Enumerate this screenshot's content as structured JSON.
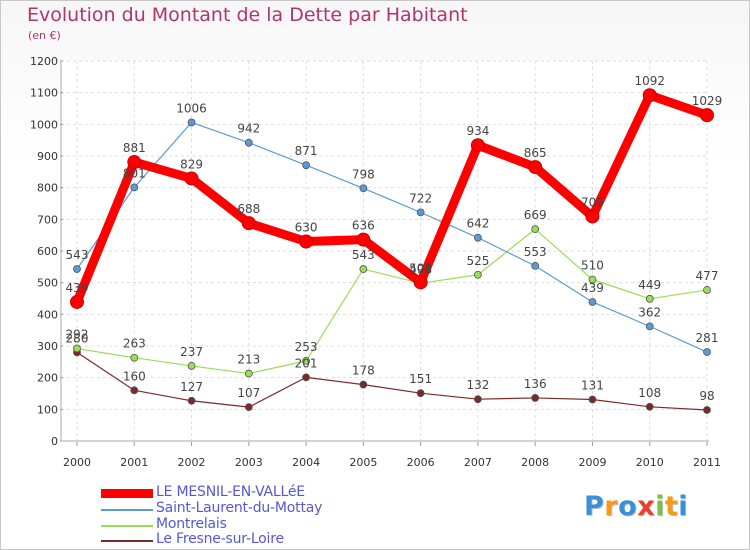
{
  "title": "Evolution du Montant de la Dette par Habitant",
  "subtitle": "(en €)",
  "logo": {
    "text": "Proxiti",
    "colors": [
      "#3a8fd8",
      "#f59a1b",
      "#3a8fd8",
      "#e8402c",
      "#7cc242",
      "#f59a1b",
      "#3a8fd8"
    ]
  },
  "chart_data": {
    "type": "line",
    "title": "Evolution du Montant de la Dette par Habitant",
    "subtitle": "(en €)",
    "xlabel": "",
    "ylabel": "",
    "x": [
      "2000",
      "2001",
      "2002",
      "2003",
      "2004",
      "2005",
      "2006",
      "2007",
      "2008",
      "2009",
      "2010",
      "2011"
    ],
    "yticks": [
      "0",
      "100",
      "200",
      "300",
      "400",
      "500",
      "600",
      "700",
      "800",
      "900",
      "1000",
      "1100",
      "1200"
    ],
    "ylim": [
      0,
      1200
    ],
    "grid": true,
    "legend": "bottom-left",
    "series": [
      {
        "name": "LE MESNIL-EN-VALLéE",
        "color": "#ff0000",
        "role": "main",
        "values": [
          439,
          881,
          829,
          688,
          630,
          636,
          501,
          934,
          865,
          709,
          1092,
          1029
        ],
        "labels": [
          "439",
          "881",
          "829",
          "688",
          "630",
          "636",
          "501",
          "934",
          "865",
          "709",
          "1092",
          "1029"
        ]
      },
      {
        "name": "Saint-Laurent-du-Mottay",
        "color": "#5b9bd5",
        "role": "secondary",
        "values": [
          543,
          801,
          1006,
          942,
          871,
          798,
          722,
          642,
          553,
          439,
          362,
          281
        ],
        "labels": [
          "543",
          "801",
          "1006",
          "942",
          "871",
          "798",
          "722",
          "642",
          "553",
          "439",
          "362",
          "281"
        ]
      },
      {
        "name": "Montrelais",
        "color": "#99dd55",
        "role": "secondary",
        "values": [
          292,
          263,
          237,
          213,
          253,
          543,
          498,
          525,
          669,
          510,
          449,
          477
        ],
        "labels": [
          "292",
          "263",
          "237",
          "213",
          "253",
          "543",
          "498",
          "525",
          "669",
          "510",
          "449",
          "477"
        ]
      },
      {
        "name": "Le Fresne-sur-Loire",
        "color": "#7b2a2a",
        "role": "secondary",
        "values": [
          280,
          160,
          127,
          107,
          201,
          178,
          151,
          132,
          136,
          131,
          108,
          98
        ],
        "labels": [
          "280",
          "160",
          "127",
          "107",
          "201",
          "178",
          "151",
          "132",
          "136",
          "131",
          "108",
          "98"
        ]
      }
    ]
  }
}
